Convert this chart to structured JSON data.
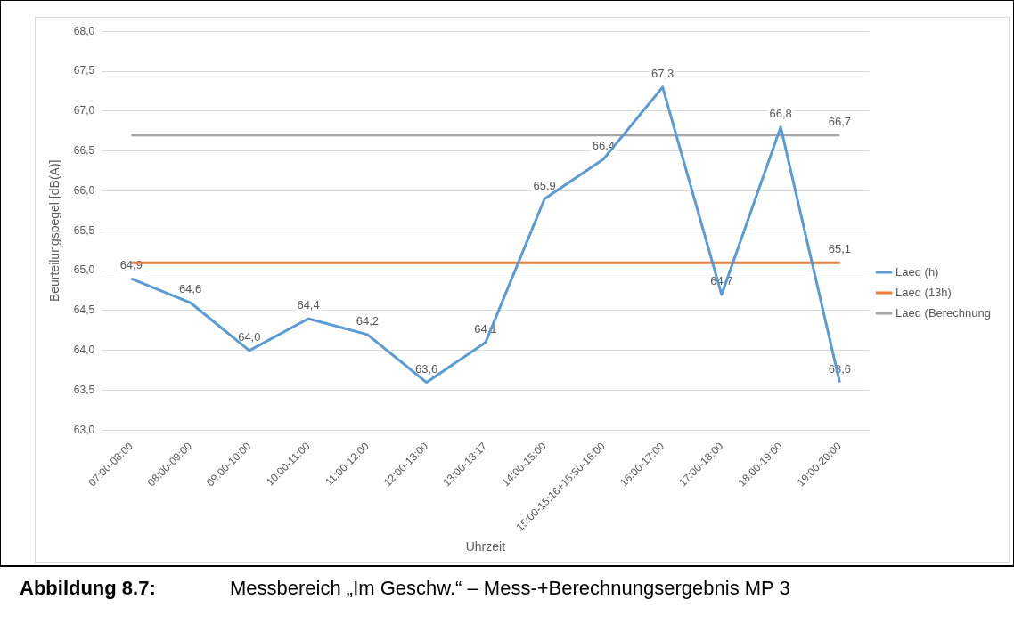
{
  "chart_data": {
    "type": "line",
    "xlabel": "Uhrzeit",
    "ylabel": "Beurteilungspegel [dB(A)]",
    "categories": [
      "07:00-08:00",
      "08:00-09:00",
      "09:00-10:00",
      "10:00-11:00",
      "11:00-12:00",
      "12:00-13:00",
      "13:00-13:17",
      "14:00-15:00",
      "15:00-15:16+15:50-16:00",
      "16:00-17:00",
      "17:00-18:00",
      "18:00-19:00",
      "19:00-20:00"
    ],
    "series": [
      {
        "name": "Laeq (h)",
        "color": "#5b9bd5",
        "values": [
          64.9,
          64.6,
          64.0,
          64.4,
          64.2,
          63.6,
          64.1,
          65.9,
          66.4,
          67.3,
          64.7,
          66.8,
          63.6
        ],
        "value_labels": [
          "64,9",
          "64,6",
          "64,0",
          "64,4",
          "64,2",
          "63,6",
          "64,1",
          "65,9",
          "66,4",
          "67,3",
          "64,7",
          "66,8",
          "63,6"
        ]
      },
      {
        "name": "Laeq (13h)",
        "color": "#ed7d31",
        "values": [
          65.1,
          65.1,
          65.1,
          65.1,
          65.1,
          65.1,
          65.1,
          65.1,
          65.1,
          65.1,
          65.1,
          65.1,
          65.1
        ],
        "value_labels": [
          null,
          null,
          null,
          null,
          null,
          null,
          null,
          null,
          null,
          null,
          null,
          null,
          "65,1"
        ]
      },
      {
        "name": "Laeq (Berechnung",
        "color": "#a5a5a5",
        "values": [
          66.7,
          66.7,
          66.7,
          66.7,
          66.7,
          66.7,
          66.7,
          66.7,
          66.7,
          66.7,
          66.7,
          66.7,
          66.7
        ],
        "value_labels": [
          null,
          null,
          null,
          null,
          null,
          null,
          null,
          null,
          null,
          null,
          null,
          null,
          "66,7"
        ]
      }
    ],
    "ylim": [
      63,
      68
    ],
    "yticks": [
      {
        "value": 63,
        "label": "63,0"
      },
      {
        "value": 63.5,
        "label": "63,5"
      },
      {
        "value": 64,
        "label": "64,0"
      },
      {
        "value": 64.5,
        "label": "64,5"
      },
      {
        "value": 65,
        "label": "65,0"
      },
      {
        "value": 65.5,
        "label": "65,5"
      },
      {
        "value": 66,
        "label": "66,0"
      },
      {
        "value": 66.5,
        "label": "66,5"
      },
      {
        "value": 67,
        "label": "67,0"
      },
      {
        "value": 67.5,
        "label": "67,5"
      },
      {
        "value": 68,
        "label": "68,0"
      }
    ],
    "grid": "y",
    "legend": "right",
    "marker": "none",
    "line_style": "solid",
    "annotations": [
      "Abbildung 8.7:",
      "Messbereich „Im Geschw.“ – Mess-+Berechnungsergebnis MP 3"
    ]
  }
}
